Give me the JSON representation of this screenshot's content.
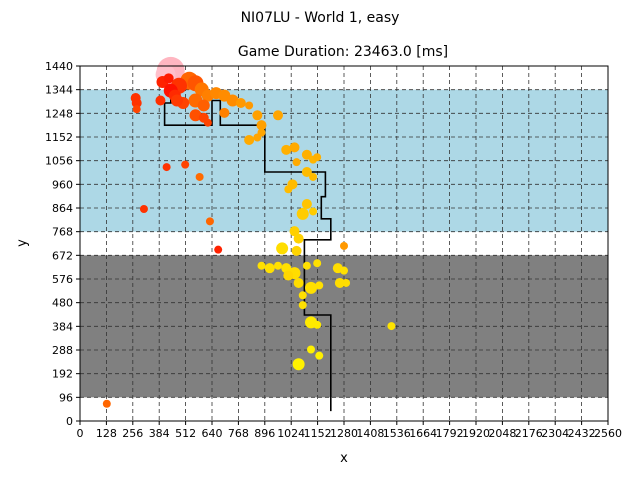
{
  "title": "NI07LU - World 1, easy",
  "subtitle": "Game Duration: 23463.0 [ms]",
  "chart_data": {
    "type": "scatter",
    "title": "NI07LU - World 1, easy",
    "subtitle": "Game Duration: 23463.0 [ms]",
    "xlabel": "x",
    "ylabel": "y",
    "xlim": [
      0,
      2560
    ],
    "ylim": [
      0,
      1440
    ],
    "xticks": [
      0,
      128,
      256,
      384,
      512,
      640,
      768,
      896,
      1024,
      1152,
      1280,
      1408,
      1536,
      1664,
      1792,
      1920,
      2048,
      2176,
      2304,
      2432,
      2560
    ],
    "yticks": [
      0,
      96,
      192,
      288,
      384,
      480,
      576,
      672,
      768,
      864,
      960,
      1056,
      1152,
      1248,
      1344,
      1440
    ],
    "grid": true,
    "bands": [
      {
        "y0": 96,
        "y1": 672,
        "color": "#808080"
      },
      {
        "y0": 768,
        "y1": 1344,
        "color": "#add8e6"
      }
    ],
    "path": {
      "color": "#000000",
      "points": [
        [
          1216,
          40
        ],
        [
          1216,
          430
        ],
        [
          1088,
          430
        ],
        [
          1088,
          735
        ],
        [
          1216,
          735
        ],
        [
          1216,
          820
        ],
        [
          1170,
          820
        ],
        [
          1170,
          910
        ],
        [
          1190,
          910
        ],
        [
          1190,
          1010
        ],
        [
          896,
          1010
        ],
        [
          896,
          1110
        ],
        [
          896,
          1200
        ],
        [
          680,
          1200
        ],
        [
          680,
          1300
        ],
        [
          640,
          1300
        ],
        [
          640,
          1200
        ],
        [
          410,
          1200
        ],
        [
          410,
          1290
        ],
        [
          440,
          1290
        ],
        [
          440,
          1400
        ]
      ]
    },
    "points": [
      {
        "x": 440,
        "y": 1420,
        "s": 14,
        "c": "#ffb6c1"
      },
      {
        "x": 415,
        "y": 1405,
        "s": 10,
        "c": "#ffc0cb"
      },
      {
        "x": 530,
        "y": 1380,
        "s": 9,
        "c": "#ff6600"
      },
      {
        "x": 560,
        "y": 1370,
        "s": 8,
        "c": "#ff5500"
      },
      {
        "x": 480,
        "y": 1360,
        "s": 8,
        "c": "#ff3300"
      },
      {
        "x": 400,
        "y": 1375,
        "s": 6,
        "c": "#ff2200"
      },
      {
        "x": 430,
        "y": 1390,
        "s": 5,
        "c": "#ff1a00"
      },
      {
        "x": 440,
        "y": 1340,
        "s": 7,
        "c": "#ff1100"
      },
      {
        "x": 460,
        "y": 1320,
        "s": 6,
        "c": "#ff2a00"
      },
      {
        "x": 590,
        "y": 1345,
        "s": 7,
        "c": "#ff7700"
      },
      {
        "x": 620,
        "y": 1320,
        "s": 6,
        "c": "#ff8000"
      },
      {
        "x": 660,
        "y": 1330,
        "s": 6,
        "c": "#ff8800"
      },
      {
        "x": 700,
        "y": 1320,
        "s": 6,
        "c": "#ff8c00"
      },
      {
        "x": 560,
        "y": 1300,
        "s": 7,
        "c": "#ff6a00"
      },
      {
        "x": 600,
        "y": 1280,
        "s": 6,
        "c": "#ff6000"
      },
      {
        "x": 500,
        "y": 1290,
        "s": 6,
        "c": "#ff4400"
      },
      {
        "x": 470,
        "y": 1300,
        "s": 6,
        "c": "#ff3a00"
      },
      {
        "x": 390,
        "y": 1300,
        "s": 5,
        "c": "#ff3000"
      },
      {
        "x": 270,
        "y": 1310,
        "s": 5,
        "c": "#ff3300"
      },
      {
        "x": 275,
        "y": 1290,
        "s": 5,
        "c": "#ff3300"
      },
      {
        "x": 275,
        "y": 1265,
        "s": 4,
        "c": "#ff4400"
      },
      {
        "x": 740,
        "y": 1300,
        "s": 6,
        "c": "#ff8c00"
      },
      {
        "x": 780,
        "y": 1290,
        "s": 5,
        "c": "#ff9900"
      },
      {
        "x": 820,
        "y": 1280,
        "s": 4,
        "c": "#ff9900"
      },
      {
        "x": 560,
        "y": 1240,
        "s": 6,
        "c": "#ff5000"
      },
      {
        "x": 600,
        "y": 1230,
        "s": 5,
        "c": "#ff4400"
      },
      {
        "x": 620,
        "y": 1210,
        "s": 4,
        "c": "#ff4400"
      },
      {
        "x": 700,
        "y": 1250,
        "s": 5,
        "c": "#ff8000"
      },
      {
        "x": 860,
        "y": 1240,
        "s": 5,
        "c": "#ffa000"
      },
      {
        "x": 960,
        "y": 1240,
        "s": 5,
        "c": "#ffa500"
      },
      {
        "x": 880,
        "y": 1200,
        "s": 5,
        "c": "#ffa000"
      },
      {
        "x": 880,
        "y": 1170,
        "s": 4,
        "c": "#ffa500"
      },
      {
        "x": 820,
        "y": 1140,
        "s": 5,
        "c": "#ffaa00"
      },
      {
        "x": 860,
        "y": 1150,
        "s": 4,
        "c": "#ffa500"
      },
      {
        "x": 1000,
        "y": 1100,
        "s": 5,
        "c": "#ffb000"
      },
      {
        "x": 1040,
        "y": 1110,
        "s": 5,
        "c": "#ffaa00"
      },
      {
        "x": 1050,
        "y": 1050,
        "s": 4,
        "c": "#ffaa00"
      },
      {
        "x": 1100,
        "y": 1080,
        "s": 5,
        "c": "#ffb000"
      },
      {
        "x": 1130,
        "y": 1060,
        "s": 4,
        "c": "#ffb500"
      },
      {
        "x": 1150,
        "y": 1070,
        "s": 4,
        "c": "#ffb000"
      },
      {
        "x": 1100,
        "y": 1010,
        "s": 5,
        "c": "#ffbb00"
      },
      {
        "x": 1130,
        "y": 990,
        "s": 4,
        "c": "#ffbb00"
      },
      {
        "x": 1030,
        "y": 960,
        "s": 5,
        "c": "#ffbb00"
      },
      {
        "x": 1010,
        "y": 940,
        "s": 4,
        "c": "#ffbb00"
      },
      {
        "x": 1100,
        "y": 880,
        "s": 5,
        "c": "#ffc400"
      },
      {
        "x": 1080,
        "y": 840,
        "s": 6,
        "c": "#ffcc00"
      },
      {
        "x": 1130,
        "y": 850,
        "s": 4,
        "c": "#ffcc00"
      },
      {
        "x": 1040,
        "y": 770,
        "s": 5,
        "c": "#ffd000"
      },
      {
        "x": 1060,
        "y": 740,
        "s": 5,
        "c": "#ffd200"
      },
      {
        "x": 980,
        "y": 700,
        "s": 6,
        "c": "#ffdd00"
      },
      {
        "x": 1050,
        "y": 690,
        "s": 5,
        "c": "#ffd400"
      },
      {
        "x": 1000,
        "y": 620,
        "s": 5,
        "c": "#ffe000"
      },
      {
        "x": 1040,
        "y": 600,
        "s": 6,
        "c": "#ffdd00"
      },
      {
        "x": 1060,
        "y": 560,
        "s": 5,
        "c": "#ffdd00"
      },
      {
        "x": 1010,
        "y": 590,
        "s": 5,
        "c": "#ffd600"
      },
      {
        "x": 1100,
        "y": 630,
        "s": 4,
        "c": "#ffe000"
      },
      {
        "x": 1150,
        "y": 640,
        "s": 4,
        "c": "#ffe000"
      },
      {
        "x": 880,
        "y": 630,
        "s": 4,
        "c": "#ffe000"
      },
      {
        "x": 920,
        "y": 620,
        "s": 5,
        "c": "#ffe000"
      },
      {
        "x": 960,
        "y": 630,
        "s": 4,
        "c": "#ffe000"
      },
      {
        "x": 1120,
        "y": 540,
        "s": 6,
        "c": "#ffe000"
      },
      {
        "x": 1160,
        "y": 550,
        "s": 4,
        "c": "#ffe000"
      },
      {
        "x": 1080,
        "y": 510,
        "s": 4,
        "c": "#ffe000"
      },
      {
        "x": 1080,
        "y": 470,
        "s": 4,
        "c": "#ffe000"
      },
      {
        "x": 1120,
        "y": 400,
        "s": 6,
        "c": "#ffea00"
      },
      {
        "x": 1150,
        "y": 390,
        "s": 4,
        "c": "#ffea00"
      },
      {
        "x": 1250,
        "y": 620,
        "s": 5,
        "c": "#ffdd00"
      },
      {
        "x": 1280,
        "y": 610,
        "s": 4,
        "c": "#ffe000"
      },
      {
        "x": 1260,
        "y": 560,
        "s": 5,
        "c": "#ffdd00"
      },
      {
        "x": 1290,
        "y": 560,
        "s": 4,
        "c": "#ffdd00"
      },
      {
        "x": 1120,
        "y": 290,
        "s": 4,
        "c": "#fff000"
      },
      {
        "x": 1160,
        "y": 265,
        "s": 4,
        "c": "#fff000"
      },
      {
        "x": 1060,
        "y": 230,
        "s": 6,
        "c": "#fff200"
      },
      {
        "x": 1510,
        "y": 385,
        "s": 4,
        "c": "#ffe400"
      },
      {
        "x": 1280,
        "y": 710,
        "s": 4,
        "c": "#ff9900"
      },
      {
        "x": 420,
        "y": 1030,
        "s": 4,
        "c": "#ff3300"
      },
      {
        "x": 510,
        "y": 1040,
        "s": 4,
        "c": "#ff4400"
      },
      {
        "x": 580,
        "y": 990,
        "s": 4,
        "c": "#ff6a00"
      },
      {
        "x": 310,
        "y": 860,
        "s": 4,
        "c": "#ff3300"
      },
      {
        "x": 630,
        "y": 810,
        "s": 4,
        "c": "#ff6600"
      },
      {
        "x": 670,
        "y": 695,
        "s": 4,
        "c": "#ff2200"
      },
      {
        "x": 130,
        "y": 70,
        "s": 4,
        "c": "#ff6600"
      }
    ]
  }
}
